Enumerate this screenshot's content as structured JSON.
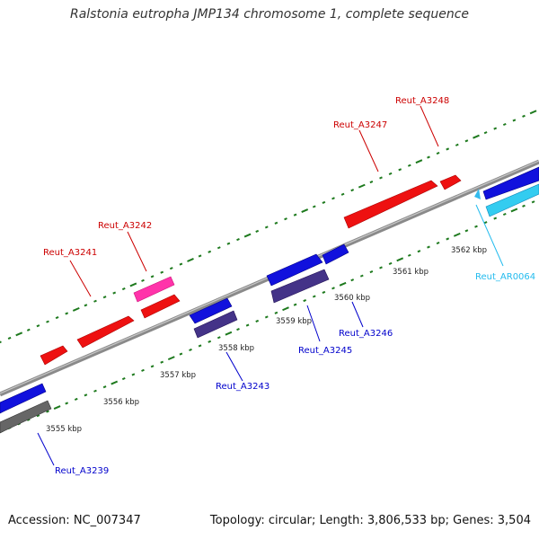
{
  "title": "Ralstonia eutropha JMP134 chromosome 1, complete sequence",
  "footer": {
    "accession": "Accession: NC_007347",
    "stats": "Topology: circular; Length: 3,806,533 bp; Genes: 3,504"
  },
  "axis_labels": [
    "3555 kbp",
    "3556 kbp",
    "3557 kbp",
    "3558 kbp",
    "3559 kbp",
    "3560 kbp",
    "3561 kbp",
    "3562 kbp"
  ],
  "gene_labels": [
    {
      "text": "Reut_A3239",
      "color": "#0000cc"
    },
    {
      "text": "Reut_A3241",
      "color": "#cc0000"
    },
    {
      "text": "Reut_A3242",
      "color": "#cc0000"
    },
    {
      "text": "Reut_A3243",
      "color": "#0000cc"
    },
    {
      "text": "Reut_A3245",
      "color": "#0000cc"
    },
    {
      "text": "Reut_A3246",
      "color": "#0000cc"
    },
    {
      "text": "Reut_A3247",
      "color": "#cc0000"
    },
    {
      "text": "Reut_A3248",
      "color": "#cc0000"
    },
    {
      "text": "Reut_AR0064",
      "color": "#22bbee"
    }
  ],
  "colors": {
    "forward_gene": "#ee1111",
    "reverse_gene": "#1111dd",
    "rna_gene": "#ff33aa",
    "pseudo_gene": "#443388",
    "trna_gene": "#33ccf0",
    "gray_gene": "#666666",
    "backbone": "#777777",
    "tick": "#1e7a1e"
  }
}
